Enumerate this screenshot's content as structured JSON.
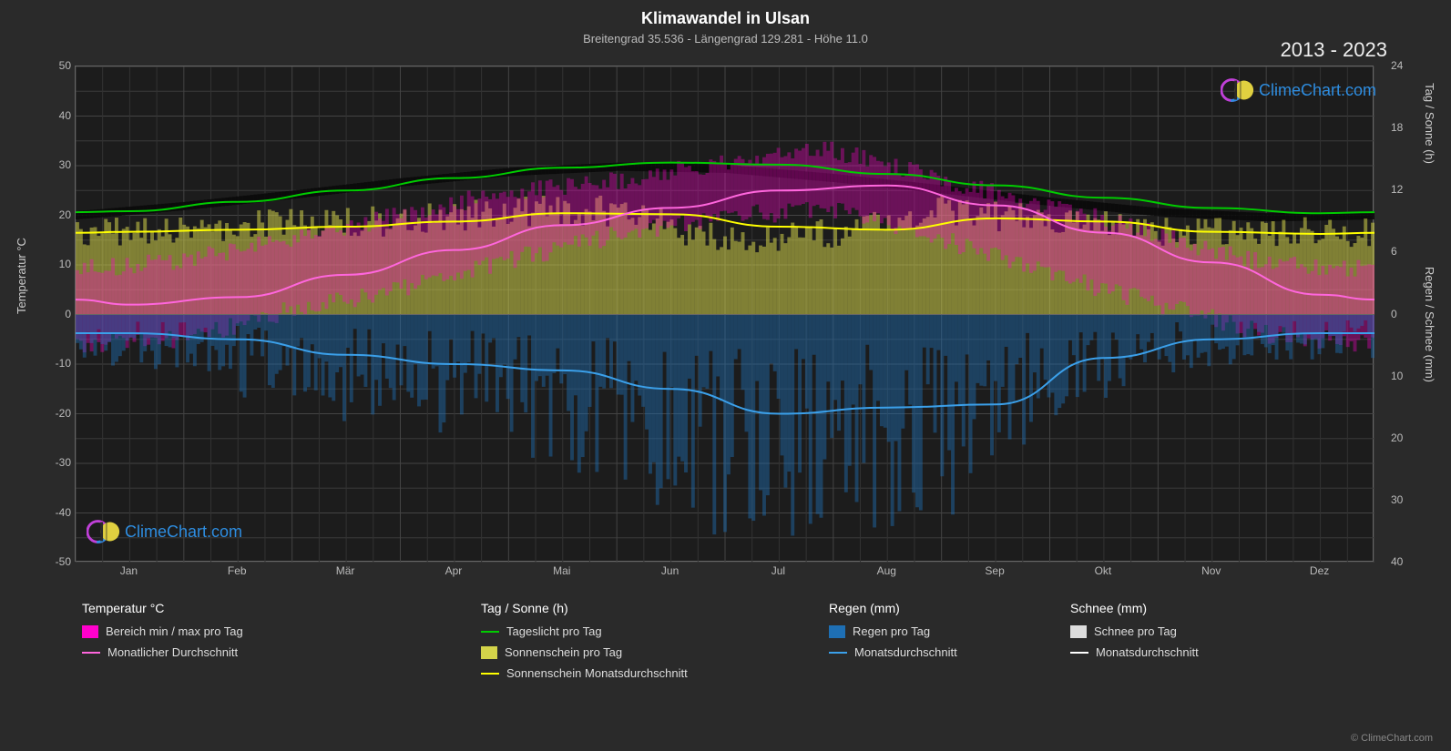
{
  "title": "Klimawandel in Ulsan",
  "subtitle": "Breitengrad 35.536 - Längengrad 129.281 - Höhe 11.0",
  "year_range": "2013 - 2023",
  "watermark_text": "ClimeChart.com",
  "copyright": "© ClimeChart.com",
  "axes": {
    "left_label": "Temperatur °C",
    "right_label_top": "Tag / Sonne (h)",
    "right_label_bottom": "Regen / Schnee (mm)",
    "left_ticks": [
      -50,
      -40,
      -30,
      -20,
      -10,
      0,
      10,
      20,
      30,
      40,
      50
    ],
    "right_ticks_top": [
      0,
      6,
      12,
      18,
      24
    ],
    "right_ticks_bottom": [
      0,
      10,
      20,
      30,
      40
    ],
    "x_labels": [
      "Jan",
      "Feb",
      "Mär",
      "Apr",
      "Mai",
      "Jun",
      "Jul",
      "Aug",
      "Sep",
      "Okt",
      "Nov",
      "Dez"
    ]
  },
  "plot": {
    "ylim_temp": [
      -50,
      50
    ],
    "ylim_hours": [
      0,
      24
    ],
    "ylim_precip": [
      0,
      40
    ],
    "background": "#1c1c1c",
    "grid_color": "#444444"
  },
  "colors": {
    "temp_range": "#ff00cc",
    "temp_avg": "#ff66dd",
    "daylight": "#00cc00",
    "sunshine_bars": "#d4d44a",
    "sunshine_avg": "#ffff00",
    "rain_bars": "#1e6fb4",
    "rain_avg": "#3ba0ea",
    "snow_bars": "#dddddd",
    "snow_avg": "#ffffff"
  },
  "series": {
    "daylight_hours": [
      10.0,
      10.9,
      12.0,
      13.2,
      14.2,
      14.7,
      14.5,
      13.6,
      12.5,
      11.3,
      10.3,
      9.8
    ],
    "sunshine_monthly_avg": [
      8.0,
      8.2,
      8.5,
      9.0,
      9.8,
      9.7,
      8.5,
      8.2,
      9.3,
      9.0,
      8.0,
      7.8
    ],
    "temp_monthly_avg_c": [
      2.0,
      3.5,
      8.0,
      13.0,
      18.0,
      21.5,
      25.0,
      26.0,
      22.0,
      16.5,
      10.5,
      4.0
    ],
    "rain_monthly_avg_mm": [
      3.0,
      4.0,
      6.5,
      8.0,
      9.0,
      12.0,
      16.0,
      15.0,
      14.5,
      7.0,
      4.0,
      3.0
    ],
    "temp_range_min_c": [
      -6,
      -5,
      1,
      5,
      11,
      16,
      20,
      21,
      15,
      8,
      2,
      -4
    ],
    "temp_range_max_c": [
      9,
      11,
      15,
      20,
      25,
      27,
      31,
      33,
      27,
      22,
      16,
      10
    ],
    "sunshine_daily_h_est": [
      8,
      8,
      9,
      9,
      10,
      10,
      7,
      8,
      10,
      9,
      8,
      8
    ]
  },
  "legend": {
    "temp": {
      "title": "Temperatur °C",
      "items": [
        {
          "type": "swatch",
          "label": "Bereich min / max pro Tag"
        },
        {
          "type": "line",
          "label": "Monatlicher Durchschnitt"
        }
      ]
    },
    "daysun": {
      "title": "Tag / Sonne (h)",
      "items": [
        {
          "type": "line",
          "label": "Tageslicht pro Tag"
        },
        {
          "type": "swatch",
          "label": "Sonnenschein pro Tag"
        },
        {
          "type": "line",
          "label": "Sonnenschein Monatsdurchschnitt"
        }
      ]
    },
    "rain": {
      "title": "Regen (mm)",
      "items": [
        {
          "type": "swatch",
          "label": "Regen pro Tag"
        },
        {
          "type": "line",
          "label": "Monatsdurchschnitt"
        }
      ]
    },
    "snow": {
      "title": "Schnee (mm)",
      "items": [
        {
          "type": "swatch",
          "label": "Schnee pro Tag"
        },
        {
          "type": "line",
          "label": "Monatsdurchschnitt"
        }
      ]
    }
  }
}
